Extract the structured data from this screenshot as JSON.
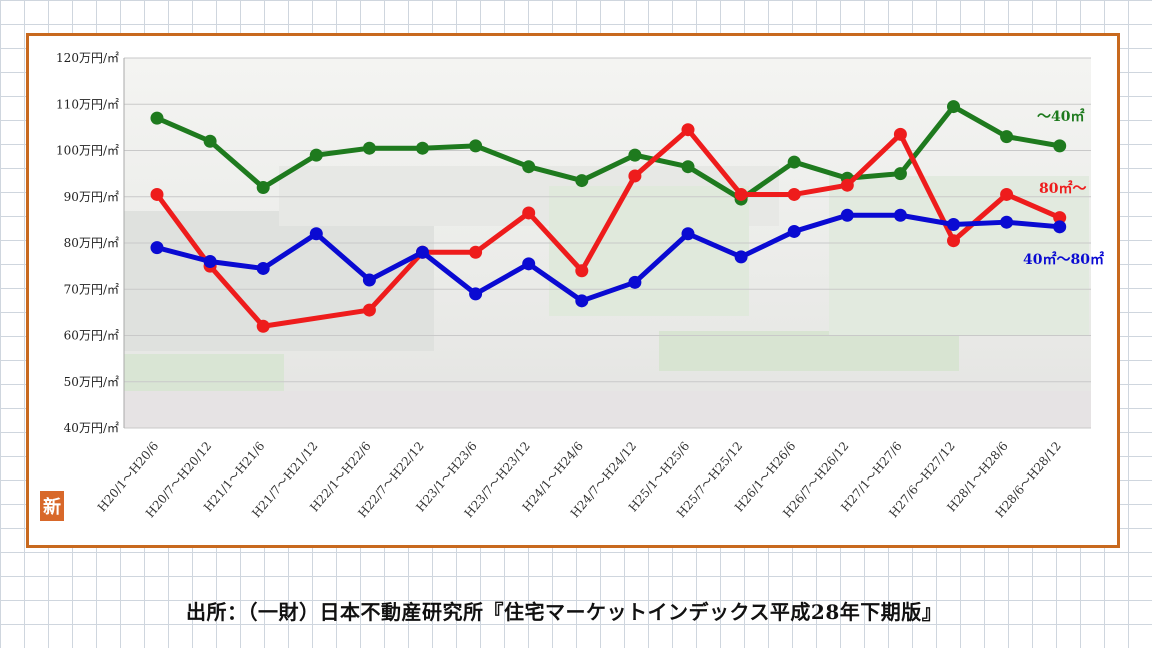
{
  "chart_data": {
    "type": "line",
    "ylim": [
      40,
      120
    ],
    "y_ticks": [
      "40万円/㎡",
      "50万円/㎡",
      "60万円/㎡",
      "70万円/㎡",
      "80万円/㎡",
      "90万円/㎡",
      "100万円/㎡",
      "110万円/㎡",
      "120万円/㎡"
    ],
    "categories": [
      "H20/1～H20/6",
      "H20/7～H20/12",
      "H21/1～H21/6",
      "H21/7～H21/12",
      "H22/1～H22/6",
      "H22/7～H22/12",
      "H23/1～H23/6",
      "H23/7～H23/12",
      "H24/1～H24/6",
      "H24/7～H24/12",
      "H25/1～H25/6",
      "H25/7～H25/12",
      "H26/1～H26/6",
      "H26/7～H26/12",
      "H27/1～H27/6",
      "H27/6～H27/12",
      "H28/1～H28/6",
      "H28/6～H28/12"
    ],
    "series": [
      {
        "name": "～40㎡",
        "color": "#1e7a1e",
        "values": [
          107,
          102,
          92,
          99,
          100.5,
          100.5,
          101,
          96.5,
          93.5,
          99,
          96.5,
          89.5,
          97.5,
          94,
          95,
          109.5,
          103,
          101
        ]
      },
      {
        "name": "80㎡～",
        "color": "#ee1c1c",
        "values": [
          90.5,
          75,
          62,
          null,
          65.5,
          78,
          78,
          86.5,
          74,
          94.5,
          104.5,
          90.5,
          90.5,
          92.5,
          103.5,
          80.5,
          90.5,
          85.5
        ]
      },
      {
        "name": "40㎡～80㎡",
        "color": "#0a0ad2",
        "values": [
          79,
          76,
          74.5,
          82,
          72,
          78,
          69,
          75.5,
          67.5,
          71.5,
          82,
          77,
          82.5,
          86,
          86,
          84,
          84.5,
          83.5
        ]
      }
    ],
    "grid": true,
    "legend": "inline-right"
  },
  "logo_char": "新",
  "source": "出所：（一財）日本不動産研究所『住宅マーケットインデックス平成28年下期版』"
}
